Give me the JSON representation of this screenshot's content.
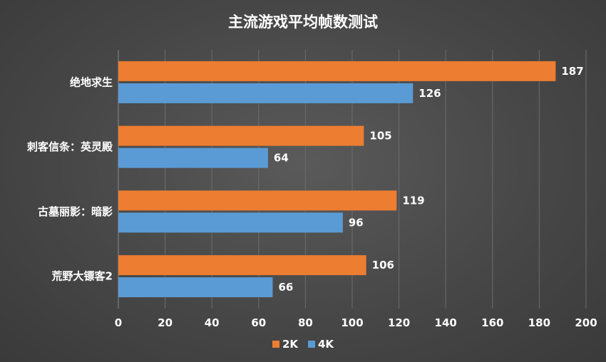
{
  "chart_data": {
    "type": "bar",
    "orientation": "horizontal",
    "title": "主流游戏平均帧数测试",
    "categories": [
      "绝地求生",
      "刺客信条：英灵殿",
      "古墓丽影：暗影",
      "荒野大镖客2"
    ],
    "series": [
      {
        "name": "2K",
        "values": [
          187,
          105,
          119,
          106
        ],
        "color": "#ed7d31"
      },
      {
        "name": "4K",
        "values": [
          126,
          64,
          96,
          66
        ],
        "color": "#5b9bd5"
      }
    ],
    "xlim": [
      0,
      200
    ],
    "xticks": [
      0,
      20,
      40,
      60,
      80,
      100,
      120,
      140,
      160,
      180,
      200
    ],
    "grid": true,
    "legend_position": "bottom",
    "data_labels": true
  }
}
